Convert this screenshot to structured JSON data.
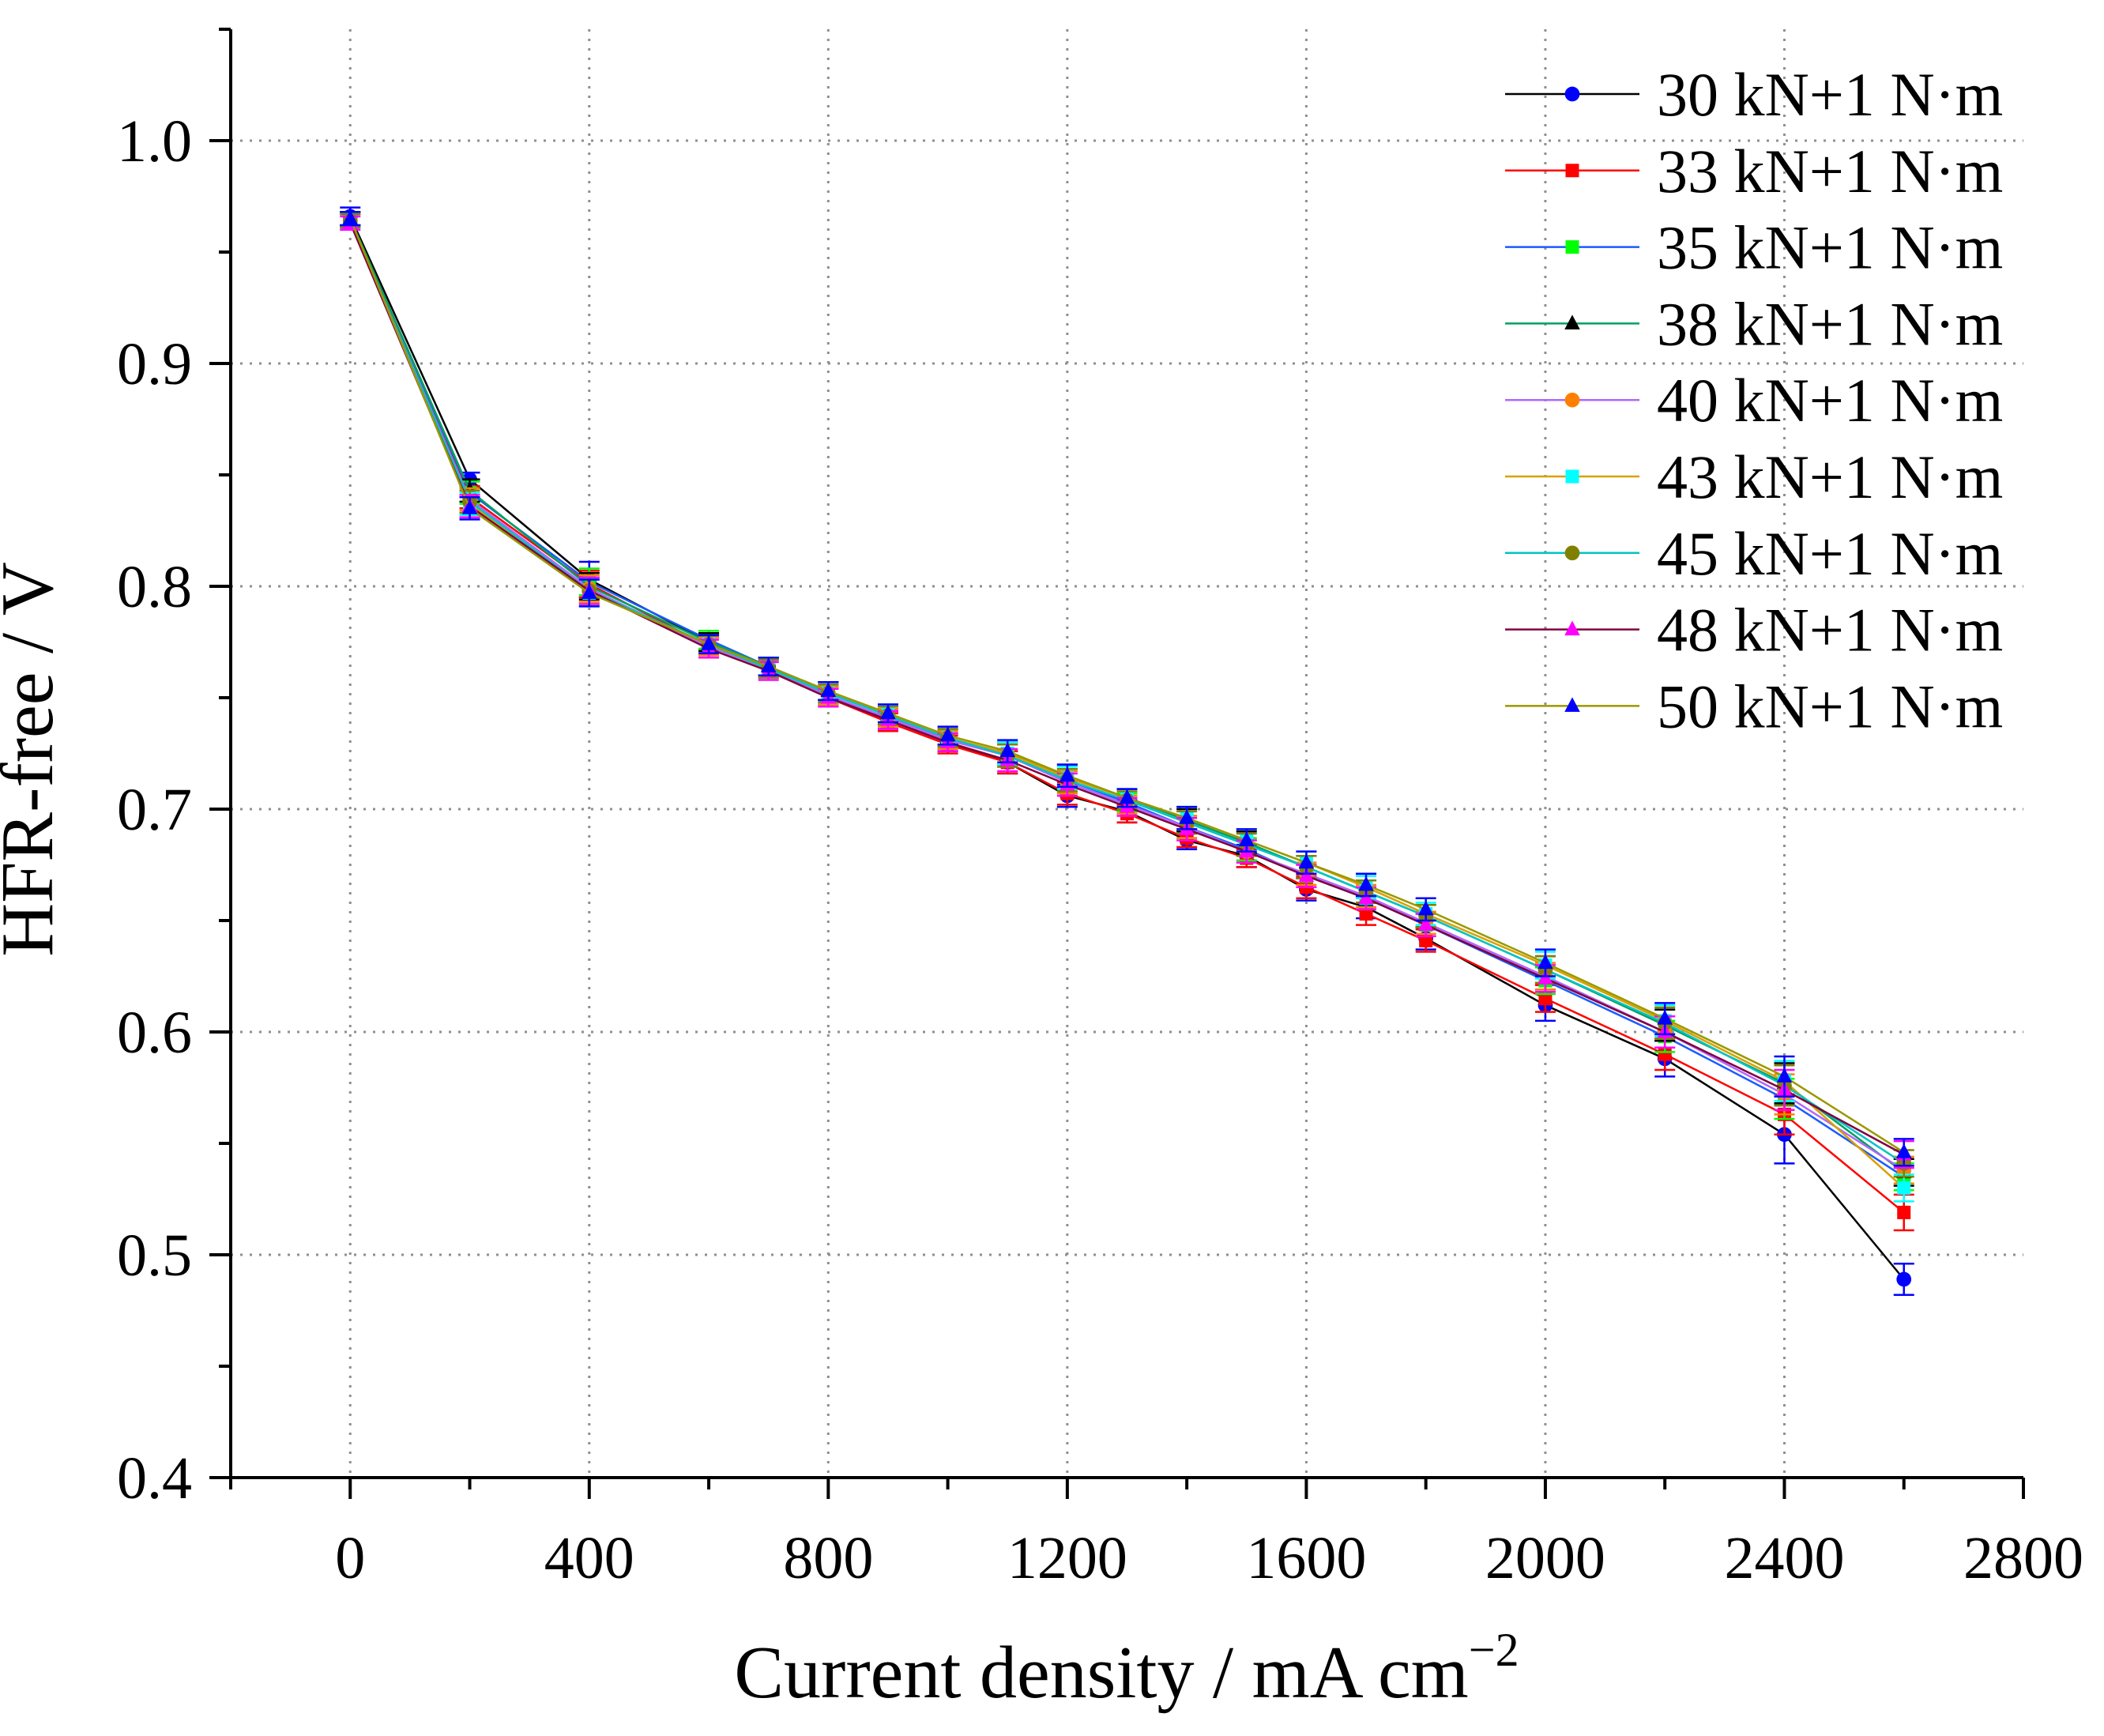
{
  "chart_data": {
    "type": "line",
    "xlabel": {
      "text": "Current density / mA cm",
      "superscript": "−2"
    },
    "ylabel": "HFR-free / V",
    "xlim": [
      -200,
      2800
    ],
    "ylim": [
      0.4,
      1.05
    ],
    "xticks": [
      0,
      400,
      800,
      1200,
      1600,
      2000,
      2400,
      2800
    ],
    "xtick_labels": [
      "0",
      "400",
      "800",
      "1200",
      "1600",
      "2000",
      "2400",
      "2800"
    ],
    "x_minor_step": 200,
    "yticks": [
      0.4,
      0.5,
      0.6,
      0.7,
      0.8,
      0.9,
      1.0
    ],
    "ytick_labels": [
      "0.4",
      "0.5",
      "0.6",
      "0.7",
      "0.8",
      "0.9",
      "1.0"
    ],
    "y_minor_step": 0.05,
    "grid": true,
    "legend_position": "top-right",
    "x": [
      0,
      200,
      400,
      600,
      700,
      800,
      900,
      1000,
      1100,
      1200,
      1300,
      1400,
      1500,
      1600,
      1700,
      1800,
      2000,
      2200,
      2400,
      2600
    ],
    "series": [
      {
        "name": "30 kN+1 N·m",
        "line_color": "#000000",
        "marker": "circle",
        "marker_color": "#0000ff",
        "values": [
          0.966,
          0.848,
          0.803,
          0.775,
          0.764,
          0.751,
          0.74,
          0.73,
          0.721,
          0.706,
          0.699,
          0.686,
          0.679,
          0.664,
          0.656,
          0.642,
          0.612,
          0.588,
          0.554,
          0.489
        ],
        "errors": [
          0.004,
          0.003,
          0.008,
          0.004,
          0.004,
          0.004,
          0.004,
          0.004,
          0.005,
          0.005,
          0.005,
          0.004,
          0.005,
          0.005,
          0.005,
          0.005,
          0.007,
          0.008,
          0.013,
          0.007
        ]
      },
      {
        "name": "33 kN+1 N·m",
        "line_color": "#ff0000",
        "marker": "square",
        "marker_color": "#ff0000",
        "values": [
          0.965,
          0.84,
          0.801,
          0.773,
          0.763,
          0.75,
          0.739,
          0.729,
          0.721,
          0.707,
          0.698,
          0.687,
          0.678,
          0.665,
          0.653,
          0.641,
          0.615,
          0.59,
          0.563,
          0.519
        ],
        "errors": [
          0.003,
          0.005,
          0.006,
          0.004,
          0.004,
          0.004,
          0.004,
          0.004,
          0.005,
          0.005,
          0.004,
          0.004,
          0.004,
          0.005,
          0.005,
          0.005,
          0.006,
          0.007,
          0.009,
          0.008
        ]
      },
      {
        "name": "35 kN+1 N·m",
        "line_color": "#1a5cff",
        "marker": "square",
        "marker_color": "#00ff00",
        "values": [
          0.965,
          0.842,
          0.802,
          0.776,
          0.764,
          0.753,
          0.742,
          0.731,
          0.724,
          0.713,
          0.703,
          0.692,
          0.682,
          0.67,
          0.66,
          0.648,
          0.623,
          0.598,
          0.57,
          0.535
        ],
        "errors": [
          0.003,
          0.005,
          0.006,
          0.004,
          0.004,
          0.004,
          0.004,
          0.004,
          0.005,
          0.005,
          0.004,
          0.005,
          0.005,
          0.005,
          0.005,
          0.005,
          0.006,
          0.007,
          0.009,
          0.006
        ]
      },
      {
        "name": "38 kN+1 N·m",
        "line_color": "#00a060",
        "marker": "triangle",
        "marker_color": "#000000",
        "values": [
          0.965,
          0.843,
          0.8,
          0.775,
          0.764,
          0.753,
          0.742,
          0.732,
          0.725,
          0.715,
          0.705,
          0.695,
          0.685,
          0.674,
          0.663,
          0.652,
          0.628,
          0.603,
          0.577,
          0.537
        ],
        "errors": [
          0.003,
          0.005,
          0.006,
          0.004,
          0.004,
          0.004,
          0.004,
          0.004,
          0.005,
          0.005,
          0.004,
          0.005,
          0.005,
          0.005,
          0.005,
          0.005,
          0.006,
          0.007,
          0.009,
          0.006
        ]
      },
      {
        "name": "40 kN+1 N·m",
        "line_color": "#b266ff",
        "marker": "circle",
        "marker_color": "#ff8000",
        "values": [
          0.964,
          0.839,
          0.799,
          0.773,
          0.763,
          0.751,
          0.741,
          0.731,
          0.724,
          0.712,
          0.702,
          0.692,
          0.681,
          0.671,
          0.661,
          0.649,
          0.625,
          0.6,
          0.572,
          0.538
        ],
        "errors": [
          0.003,
          0.005,
          0.006,
          0.004,
          0.004,
          0.004,
          0.004,
          0.004,
          0.005,
          0.005,
          0.004,
          0.005,
          0.005,
          0.005,
          0.005,
          0.005,
          0.006,
          0.007,
          0.009,
          0.006
        ]
      },
      {
        "name": "43 kN+1 N·m",
        "line_color": "#d9a000",
        "marker": "square",
        "marker_color": "#00ffff",
        "values": [
          0.964,
          0.837,
          0.797,
          0.774,
          0.763,
          0.752,
          0.743,
          0.732,
          0.725,
          0.714,
          0.705,
          0.696,
          0.686,
          0.676,
          0.665,
          0.653,
          0.63,
          0.605,
          0.578,
          0.53
        ],
        "errors": [
          0.003,
          0.005,
          0.006,
          0.004,
          0.004,
          0.004,
          0.004,
          0.004,
          0.005,
          0.005,
          0.004,
          0.005,
          0.005,
          0.005,
          0.005,
          0.005,
          0.006,
          0.007,
          0.009,
          0.006
        ]
      },
      {
        "name": "45 kN+1 N·m",
        "line_color": "#00c4c4",
        "marker": "circle",
        "marker_color": "#808000",
        "values": [
          0.964,
          0.838,
          0.798,
          0.774,
          0.763,
          0.752,
          0.742,
          0.732,
          0.724,
          0.713,
          0.704,
          0.694,
          0.684,
          0.674,
          0.663,
          0.652,
          0.628,
          0.604,
          0.576,
          0.541
        ],
        "errors": [
          0.003,
          0.005,
          0.006,
          0.004,
          0.004,
          0.004,
          0.004,
          0.004,
          0.005,
          0.005,
          0.004,
          0.005,
          0.005,
          0.005,
          0.005,
          0.005,
          0.006,
          0.007,
          0.009,
          0.006
        ]
      },
      {
        "name": "48 kN+1 N·m",
        "line_color": "#800040",
        "marker": "triangle",
        "marker_color": "#ff00ff",
        "values": [
          0.963,
          0.836,
          0.798,
          0.772,
          0.762,
          0.75,
          0.74,
          0.73,
          0.722,
          0.711,
          0.701,
          0.691,
          0.681,
          0.67,
          0.66,
          0.648,
          0.624,
          0.6,
          0.574,
          0.545
        ],
        "errors": [
          0.003,
          0.005,
          0.006,
          0.004,
          0.004,
          0.004,
          0.004,
          0.004,
          0.005,
          0.005,
          0.004,
          0.005,
          0.005,
          0.005,
          0.005,
          0.005,
          0.006,
          0.007,
          0.009,
          0.006
        ]
      },
      {
        "name": "50 kN+1 N·m",
        "line_color": "#999900",
        "marker": "triangle",
        "marker_color": "#0000ff",
        "values": [
          0.965,
          0.835,
          0.797,
          0.774,
          0.764,
          0.753,
          0.743,
          0.733,
          0.726,
          0.715,
          0.705,
          0.696,
          0.686,
          0.676,
          0.666,
          0.655,
          0.631,
          0.606,
          0.58,
          0.546
        ],
        "errors": [
          0.003,
          0.005,
          0.006,
          0.004,
          0.004,
          0.004,
          0.004,
          0.004,
          0.005,
          0.005,
          0.004,
          0.005,
          0.005,
          0.005,
          0.005,
          0.005,
          0.006,
          0.007,
          0.009,
          0.006
        ]
      }
    ]
  }
}
